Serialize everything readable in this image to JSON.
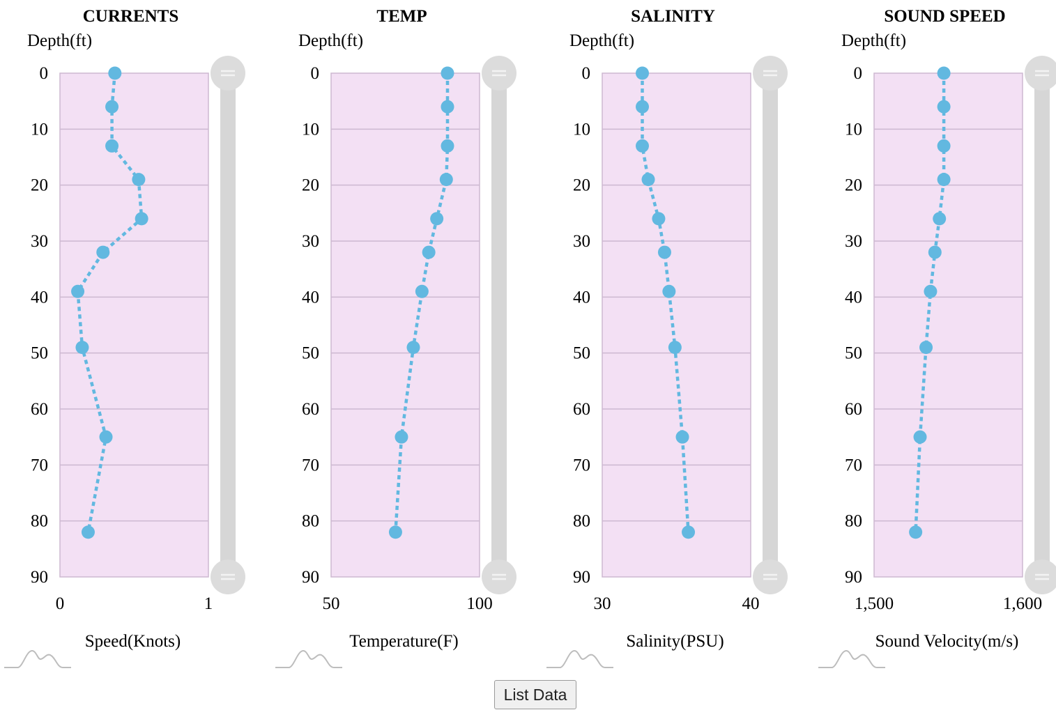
{
  "chart_data": [
    {
      "type": "scatter",
      "title": "CURRENTS",
      "ylabel": "Depth(ft)",
      "xlabel": "Speed(Knots)",
      "xlim": [
        0,
        1
      ],
      "ylim": [
        0,
        90
      ],
      "x_ticks": [
        "0",
        "1"
      ],
      "y_ticks": [
        "0",
        "10",
        "20",
        "30",
        "40",
        "50",
        "60",
        "70",
        "80",
        "90"
      ],
      "grid": true,
      "series": [
        {
          "x": [
            0.37,
            0.35,
            0.35,
            0.53,
            0.55,
            0.29,
            0.12,
            0.15,
            0.31,
            0.19
          ],
          "y": [
            0,
            6,
            13,
            19,
            26,
            32,
            39,
            49,
            65,
            82
          ]
        }
      ]
    },
    {
      "type": "scatter",
      "title": "TEMP",
      "ylabel": "Depth(ft)",
      "xlabel": "Temperature(F)",
      "xlim": [
        50,
        100
      ],
      "ylim": [
        0,
        90
      ],
      "x_ticks": [
        "50",
        "100"
      ],
      "y_ticks": [
        "0",
        "10",
        "20",
        "30",
        "40",
        "50",
        "60",
        "70",
        "80",
        "90"
      ],
      "grid": true,
      "series": [
        {
          "x": [
            89.2,
            89.2,
            89.2,
            88.8,
            85.6,
            82.9,
            80.6,
            77.7,
            73.7,
            71.7
          ],
          "y": [
            0,
            6,
            13,
            19,
            26,
            32,
            39,
            49,
            65,
            82
          ]
        }
      ]
    },
    {
      "type": "scatter",
      "title": "SALINITY",
      "ylabel": "Depth(ft)",
      "xlabel": "Salinity(PSU)",
      "xlim": [
        30,
        40
      ],
      "ylim": [
        0,
        90
      ],
      "x_ticks": [
        "30",
        "40"
      ],
      "y_ticks": [
        "0",
        "10",
        "20",
        "30",
        "40",
        "50",
        "60",
        "70",
        "80",
        "90"
      ],
      "grid": true,
      "series": [
        {
          "x": [
            32.7,
            32.7,
            32.7,
            33.1,
            33.8,
            34.2,
            34.5,
            34.9,
            35.4,
            35.8
          ],
          "y": [
            0,
            6,
            13,
            19,
            26,
            32,
            39,
            49,
            65,
            82
          ]
        }
      ]
    },
    {
      "type": "scatter",
      "title": "SOUND SPEED",
      "ylabel": "Depth(ft)",
      "xlabel": "Sound Velocity(m/s)",
      "xlim": [
        1500,
        1600
      ],
      "ylim": [
        0,
        90
      ],
      "x_ticks": [
        "1,500",
        "1,600"
      ],
      "y_ticks": [
        "0",
        "10",
        "20",
        "30",
        "40",
        "50",
        "60",
        "70",
        "80",
        "90"
      ],
      "grid": true,
      "series": [
        {
          "x": [
            1547,
            1547,
            1547,
            1547,
            1544,
            1541,
            1538,
            1535,
            1531,
            1528
          ],
          "y": [
            0,
            6,
            13,
            19,
            26,
            32,
            39,
            49,
            65,
            82
          ]
        }
      ]
    }
  ],
  "colors": {
    "plot_background": "#f3e0f4",
    "plot_border": "#cdb8d1",
    "gridline": "#cdb8d1",
    "series": "#62b8e0",
    "slider_track": "#d6d6d6",
    "slider_handle": "#dcdcdc",
    "handle_mark": "#f3f3f3",
    "wave_icon": "#bdbdbd",
    "text": "#000000"
  },
  "icons": {
    "slider_handle": "slider-handle-icon",
    "waveform": "waveform-icon"
  },
  "button": {
    "label": "List Data"
  }
}
